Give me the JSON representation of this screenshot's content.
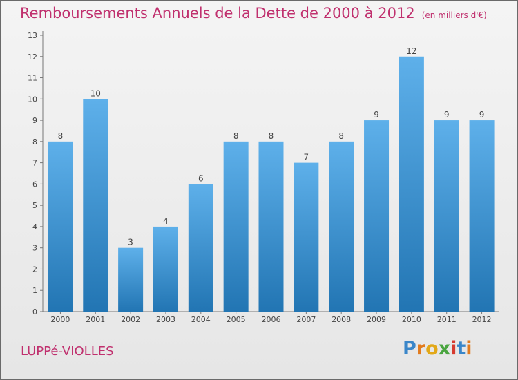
{
  "header": {
    "title": "Remboursements Annuels de la Dette de 2000 à 2012",
    "unit": "(en milliers d'€)"
  },
  "footer": {
    "commune": "LUPPé-VIOLLES",
    "logo": "Proxiti"
  },
  "colors": {
    "bar_light": "#5eb0ea",
    "bar_dark": "#2275b3",
    "title": "#c0306e"
  },
  "chart_data": {
    "type": "bar",
    "title": "Remboursements Annuels de la Dette de 2000 à 2012",
    "subtitle": "(en milliers d'€)",
    "xlabel": "",
    "ylabel": "",
    "categories": [
      "2000",
      "2001",
      "2002",
      "2003",
      "2004",
      "2005",
      "2006",
      "2007",
      "2008",
      "2009",
      "2010",
      "2011",
      "2012"
    ],
    "values": [
      8,
      10,
      3,
      4,
      6,
      8,
      8,
      7,
      8,
      9,
      12,
      9,
      9
    ],
    "ylim": [
      0,
      13
    ],
    "yticks": [
      0,
      1,
      2,
      3,
      4,
      5,
      6,
      7,
      8,
      9,
      10,
      11,
      12,
      13
    ],
    "grid": false,
    "legend": "none"
  }
}
